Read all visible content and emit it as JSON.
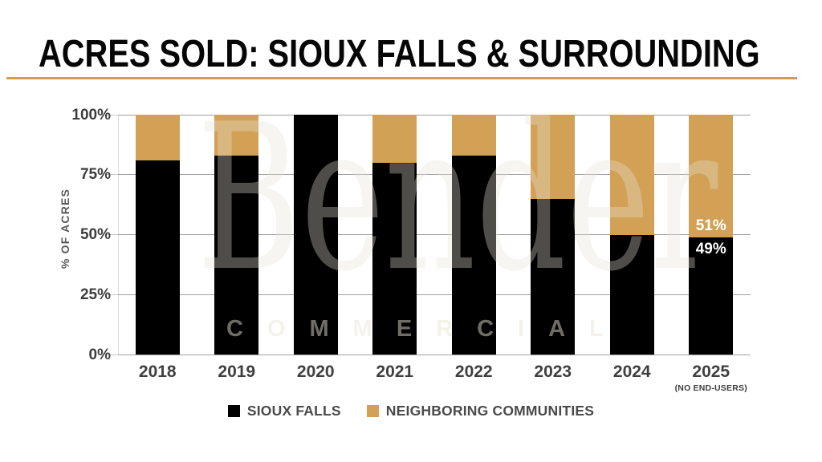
{
  "header": {
    "title": "ACRES SOLD: SIOUX FALLS & SURROUNDING",
    "underline_color": "#d09e4f"
  },
  "watermark": {
    "name": "Bender",
    "subtitle": "COMMERCIAL"
  },
  "chart_data": {
    "type": "bar",
    "stacked": true,
    "title": "ACRES SOLD: SIOUX FALLS & SURROUNDING",
    "xlabel": "",
    "ylabel": "% OF ACRES",
    "ylim": [
      0,
      100
    ],
    "yticks": [
      0,
      25,
      50,
      75,
      100
    ],
    "ytick_labels": [
      "0%",
      "25%",
      "50%",
      "75%",
      "100%"
    ],
    "grid": true,
    "legend_position": "bottom",
    "categories": [
      "2018",
      "2019",
      "2020",
      "2021",
      "2022",
      "2023",
      "2024",
      "2025"
    ],
    "category_note": {
      "index": 7,
      "text": "(NO END-USERS)"
    },
    "series": [
      {
        "name": "SIOUX FALLS",
        "color": "#000000",
        "values": [
          81,
          83,
          100,
          80,
          83,
          65,
          50,
          49
        ]
      },
      {
        "name": "NEIGHBORING COMMUNITIES",
        "color": "#d2a156",
        "values": [
          19,
          17,
          0,
          20,
          17,
          35,
          50,
          51
        ]
      }
    ],
    "data_labels": [
      {
        "category": "2025",
        "series_0_label": "49%",
        "series_1_label": "51%"
      }
    ]
  },
  "colors": {
    "sioux_falls": "#000000",
    "neighboring_communities": "#d2a156",
    "title_underline": "#d09e4f",
    "gridline": "#9e9e9e",
    "axis_text": "#3d3d3d",
    "bar_label_text": "#ffffff"
  }
}
